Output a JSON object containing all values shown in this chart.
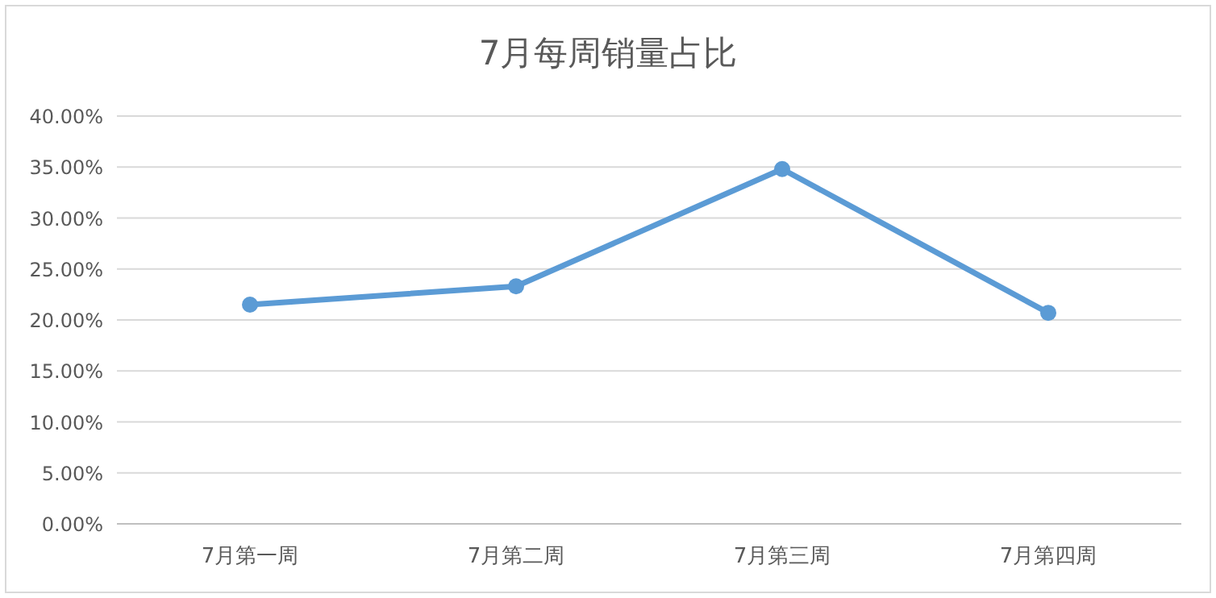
{
  "chart_data": {
    "type": "line",
    "title": "7月每周销量占比",
    "categories": [
      "7月第一周",
      "7月第二周",
      "7月第三周",
      "7月第四周"
    ],
    "series": [
      {
        "color": "#5b9bd5",
        "values": [
          21.5,
          23.3,
          34.8,
          20.7
        ]
      }
    ],
    "ylim": [
      0,
      40
    ],
    "yticks": [
      {
        "value": 0,
        "label": "0.00%"
      },
      {
        "value": 5,
        "label": "5.00%"
      },
      {
        "value": 10,
        "label": "10.00%"
      },
      {
        "value": 15,
        "label": "15.00%"
      },
      {
        "value": 20,
        "label": "20.00%"
      },
      {
        "value": 25,
        "label": "25.00%"
      },
      {
        "value": 30,
        "label": "30.00%"
      },
      {
        "value": 35,
        "label": "35.00%"
      },
      {
        "value": 40,
        "label": "40.00%"
      }
    ],
    "grid": "y",
    "marker": "circle",
    "line_style": "solid"
  }
}
